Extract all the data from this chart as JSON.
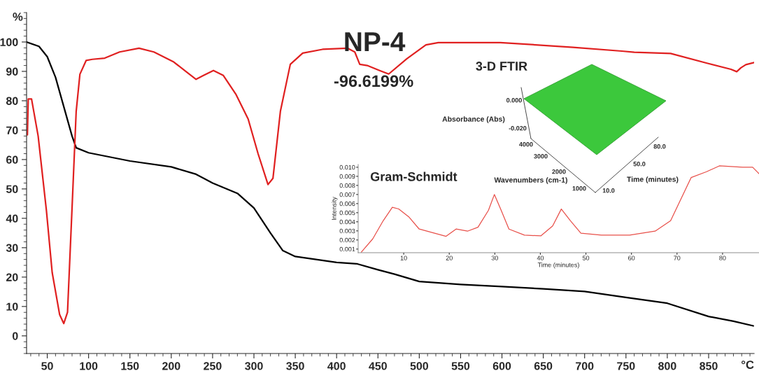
{
  "chart_data": [
    {
      "type": "line",
      "title": "NP-4",
      "xlabel": "°C",
      "ylabel": "%",
      "annotations": [
        "-96.6199%"
      ],
      "xlim": [
        25,
        905
      ],
      "ylim": [
        -6,
        110
      ],
      "xticks": [
        50,
        100,
        150,
        200,
        250,
        300,
        350,
        400,
        450,
        500,
        550,
        600,
        650,
        700,
        750,
        800,
        850
      ],
      "yticks": [
        0,
        10,
        20,
        30,
        40,
        50,
        60,
        70,
        80,
        90,
        100
      ],
      "grid": false,
      "legend": false,
      "series": [
        {
          "color": "#000000",
          "x": [
            25,
            40,
            50,
            60,
            70,
            80,
            85,
            100,
            150,
            200,
            230,
            250,
            280,
            300,
            320,
            335,
            350,
            400,
            425,
            450,
            470,
            500,
            550,
            600,
            650,
            700,
            750,
            800,
            850,
            880,
            904
          ],
          "values": [
            100,
            98.5,
            95,
            88,
            78,
            68,
            64,
            62.3,
            59.5,
            57.5,
            55,
            52,
            48.5,
            43.5,
            35,
            29,
            27,
            25,
            24.5,
            22.5,
            21,
            18.5,
            17.5,
            16.8,
            16,
            15.1,
            13.1,
            11.1,
            6.6,
            5,
            3.4
          ]
        },
        {
          "color": "#e02020",
          "x": [
            26,
            27,
            31,
            39,
            49,
            56,
            65,
            70,
            74.5,
            80.5,
            85,
            89.5,
            97,
            104.5,
            119.5,
            137.5,
            161,
            179,
            203,
            218,
            230,
            239,
            251,
            263,
            278,
            293,
            305,
            317,
            323,
            332,
            344,
            359,
            383,
            413,
            422,
            428,
            437,
            452,
            463,
            485,
            508,
            523,
            598,
            686,
            745,
            760,
            804,
            848,
            877,
            884,
            889,
            895,
            905
          ],
          "values": [
            68.4,
            80.6,
            80.6,
            68,
            42.6,
            21.5,
            7.2,
            4.2,
            8,
            46.8,
            76.4,
            89,
            93.7,
            94.1,
            94.5,
            96.6,
            97.9,
            96.6,
            93.2,
            89.9,
            87.3,
            88.6,
            90.3,
            88.6,
            82.3,
            73.8,
            62,
            51.5,
            53.6,
            76.4,
            92.4,
            96.2,
            97.5,
            97.9,
            96.6,
            92.4,
            92,
            90.3,
            89.1,
            94.3,
            99,
            99.8,
            99.8,
            98.2,
            96.9,
            96.5,
            96.1,
            92.8,
            90.7,
            89.9,
            91.2,
            92.3,
            93
          ]
        }
      ]
    },
    {
      "type": "line",
      "title": "Gram-Schmidt",
      "xlabel": "Time (minutes)",
      "ylabel": "Intensity",
      "xlim": [
        0,
        88
      ],
      "ylim": [
        0.0006,
        0.0103
      ],
      "xticks": [
        10,
        20,
        30,
        40,
        50,
        60,
        70,
        80
      ],
      "yticks": [
        0.001,
        0.002,
        0.003,
        0.004,
        0.005,
        0.006,
        0.007,
        0.008,
        0.009,
        {
          "value": 0.01,
          "label": "0.010"
        }
      ],
      "grid": false,
      "legend": false,
      "series": [
        {
          "color": "#e8504a",
          "x": [
            0.7,
            3.2,
            5.5,
            7.5,
            8.9,
            11.1,
            13.4,
            16.2,
            19.3,
            21.5,
            24,
            26.3,
            28.6,
            29.9,
            31.4,
            33.1,
            36.5,
            40.1,
            42.7,
            44.6,
            46.6,
            48.9,
            53.4,
            59.6,
            65.2,
            68.6,
            73.1,
            76.5,
            79.3,
            84.4,
            86.6,
            88
          ],
          "values": [
            0.00067,
            0.00212,
            0.00412,
            0.0056,
            0.00541,
            0.00455,
            0.0032,
            0.00282,
            0.0024,
            0.0032,
            0.00297,
            0.0034,
            0.00526,
            0.007,
            0.00526,
            0.0032,
            0.00253,
            0.00245,
            0.00354,
            0.0054,
            0.00412,
            0.00274,
            0.00253,
            0.00253,
            0.00297,
            0.00412,
            0.00886,
            0.00951,
            0.01015,
            0.01,
            0.01,
            0.00929
          ]
        }
      ]
    },
    {
      "type": "other",
      "title": "3-D FTIR",
      "annotations": [
        "0.000",
        "Absorbance (Abs)",
        "-0.020",
        "4000",
        "3000",
        "2000",
        "Wavenumbers (cm-1)",
        "1000",
        "10.0",
        "50.0",
        "80.0",
        "Time (minutes)"
      ]
    }
  ]
}
